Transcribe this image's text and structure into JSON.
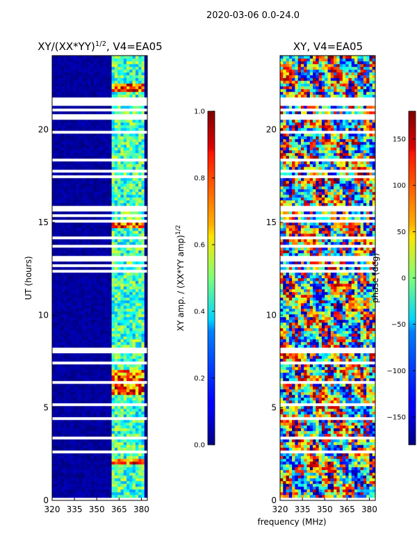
{
  "figure": {
    "suptitle": "2020-03-06 0.0-24.0"
  },
  "chart_data": [
    {
      "type": "heatmap",
      "title": "XY/(XX*YY)^1/2, V4=EA05",
      "title_parts": {
        "main": "XY/(XX*YY)",
        "exp": "1/2",
        "rest": ", V4=EA05"
      },
      "xlabel": "",
      "ylabel": "UT (hours)",
      "xlim": [
        320,
        384
      ],
      "ylim": [
        0,
        24
      ],
      "xticks": [
        320,
        335,
        350,
        365,
        380
      ],
      "yticks": [
        0,
        5,
        10,
        15,
        20
      ],
      "colormap": "jet",
      "colorbar": {
        "label": "XY amp. / (XX*YY amp)",
        "label_exp": "1/2",
        "range": [
          0.0,
          1.0
        ],
        "ticks": [
          "0.0",
          "0.2",
          "0.4",
          "0.6",
          "0.8",
          "1.0"
        ],
        "tick_values": [
          0.0,
          0.2,
          0.4,
          0.6,
          0.8,
          1.0
        ]
      },
      "bright_channel_bands_mhz": [
        [
          361,
          365
        ],
        [
          367,
          369
        ],
        [
          371,
          375
        ],
        [
          377,
          381
        ]
      ],
      "high_amp_hours": [
        [
          2.0,
          2.3
        ],
        [
          5.7,
          7.0
        ],
        [
          14.7,
          15.2
        ],
        [
          22.1,
          22.5
        ]
      ],
      "flagged_hours": [
        [
          21.3,
          21.7
        ],
        [
          15.0,
          15.2
        ],
        [
          4.3,
          4.5
        ],
        [
          2.5,
          2.7
        ],
        [
          8.0,
          8.2
        ]
      ]
    },
    {
      "type": "heatmap",
      "title": "XY, V4=EA05",
      "xlabel": "frequency (MHz)",
      "ylabel": "",
      "xlim": [
        320,
        384
      ],
      "ylim": [
        0,
        24
      ],
      "xticks": [
        320,
        335,
        350,
        365,
        380
      ],
      "yticks": [
        0,
        5,
        10,
        15,
        20
      ],
      "colormap": "jet",
      "colorbar": {
        "label": "phase (deg)",
        "range": [
          -180,
          180
        ],
        "ticks": [
          "150",
          "100",
          "50",
          "0",
          "−50",
          "−100",
          "−150"
        ],
        "tick_values": [
          150,
          100,
          50,
          0,
          -50,
          -100,
          -150
        ]
      },
      "flagged_hours": [
        [
          21.3,
          21.7
        ],
        [
          15.0,
          15.2
        ],
        [
          4.3,
          4.5
        ],
        [
          2.5,
          2.7
        ],
        [
          8.0,
          8.2
        ]
      ]
    }
  ]
}
